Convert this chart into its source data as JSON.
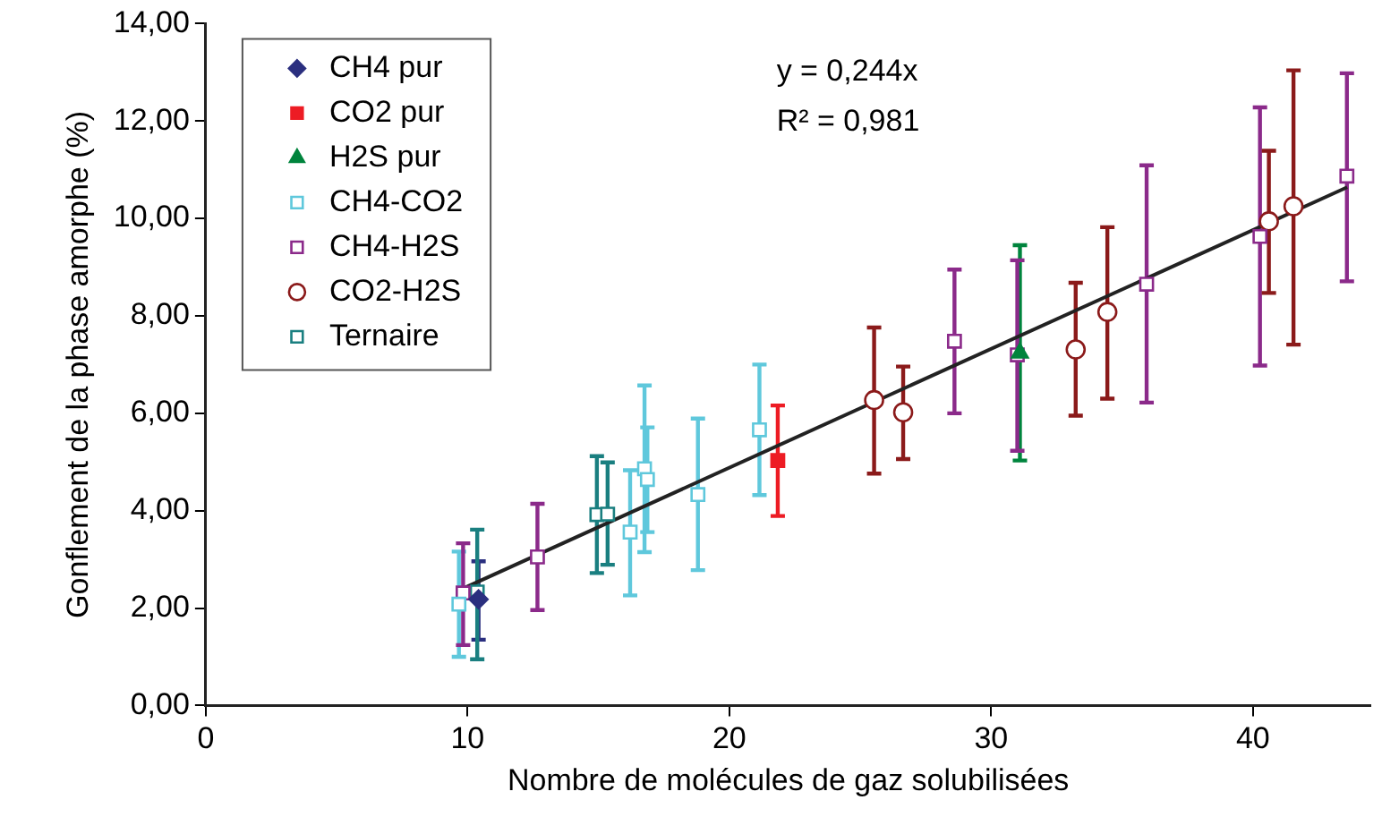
{
  "chart_data": {
    "type": "scatter",
    "xlabel": "Nombre de molécules de gaz solubilisées",
    "ylabel": "Gonflement de la phase amorphe (%)",
    "xlim": [
      0,
      44.5
    ],
    "xticks": [
      0,
      10,
      20,
      30,
      40
    ],
    "ylim": [
      0,
      14
    ],
    "yticks": [
      {
        "value": 0,
        "label": "0,00"
      },
      {
        "value": 2,
        "label": "2,00"
      },
      {
        "value": 4,
        "label": "4,00"
      },
      {
        "value": 6,
        "label": "6,00"
      },
      {
        "value": 8,
        "label": "8,00"
      },
      {
        "value": 10,
        "label": "10,00"
      },
      {
        "value": 12,
        "label": "12,00"
      },
      {
        "value": 14,
        "label": "14,00"
      }
    ],
    "grid": false,
    "legend": "top left",
    "annotations": [
      "y = 0,244x",
      "R² = 0,981"
    ],
    "series": [
      {
        "name": "CH4 pur",
        "color": "#2b2f7f",
        "marker": "diamond",
        "x": [
          10.42
        ],
        "values": [
          2.18
        ],
        "errors": [
          [
            1.35,
            2.96
          ]
        ]
      },
      {
        "name": "CO2 pur",
        "color": "#ed1c24",
        "marker": "square",
        "x": [
          21.85
        ],
        "values": [
          5.03
        ],
        "errors": [
          [
            3.89,
            6.16
          ]
        ]
      },
      {
        "name": "H2S pur",
        "color": "#00843d",
        "marker": "triangle",
        "x": [
          31.1
        ],
        "values": [
          7.24
        ],
        "errors": [
          [
            5.03,
            9.45
          ]
        ]
      },
      {
        "name": "CH4-CO2",
        "color": "#5fc8dc",
        "marker": "square",
        "x": [
          9.67,
          16.21,
          16.76,
          16.87,
          18.8,
          21.15
        ],
        "values": [
          2.08,
          3.56,
          4.86,
          4.64,
          4.33,
          5.66
        ],
        "errors": [
          [
            1.0,
            3.16
          ],
          [
            2.26,
            4.83
          ],
          [
            3.15,
            6.57
          ],
          [
            3.56,
            5.71
          ],
          [
            2.78,
            5.89
          ],
          [
            4.32,
            7.0
          ]
        ]
      },
      {
        "name": "CH4-H2S",
        "color": "#8b2a8a",
        "marker": "square",
        "x": [
          9.83,
          12.67,
          28.6,
          31.0,
          35.94,
          40.27,
          43.59
        ],
        "values": [
          2.31,
          3.05,
          7.48,
          7.2,
          8.65,
          9.63,
          10.87
        ],
        "errors": [
          [
            1.24,
            3.33
          ],
          [
            1.96,
            4.14
          ],
          [
            6.0,
            8.95
          ],
          [
            5.23,
            9.14
          ],
          [
            6.22,
            11.09
          ],
          [
            6.98,
            12.28
          ],
          [
            8.71,
            12.98
          ]
        ]
      },
      {
        "name": "CO2-H2S",
        "color": "#8b1a1a",
        "marker": "circle",
        "x": [
          25.53,
          26.64,
          33.23,
          34.44,
          40.61,
          41.55
        ],
        "values": [
          6.27,
          6.02,
          7.31,
          8.08,
          9.94,
          10.25
        ],
        "errors": [
          [
            4.76,
            7.76
          ],
          [
            5.06,
            6.96
          ],
          [
            5.95,
            8.68
          ],
          [
            6.3,
            9.82
          ],
          [
            8.47,
            11.39
          ],
          [
            7.41,
            13.04
          ]
        ]
      },
      {
        "name": "Ternaire",
        "color": "#1a7f80",
        "marker": "square",
        "x": [
          10.37,
          14.94,
          15.35
        ],
        "values": [
          2.33,
          3.92,
          3.93
        ],
        "errors": [
          [
            0.95,
            3.61
          ],
          [
            2.72,
            5.12
          ],
          [
            2.89,
            4.99
          ]
        ]
      },
      {
        "type": "line",
        "color": "#222222",
        "marker": "none",
        "x": [
          9.7,
          43.6
        ],
        "values": [
          2.37,
          10.64
        ]
      }
    ]
  }
}
